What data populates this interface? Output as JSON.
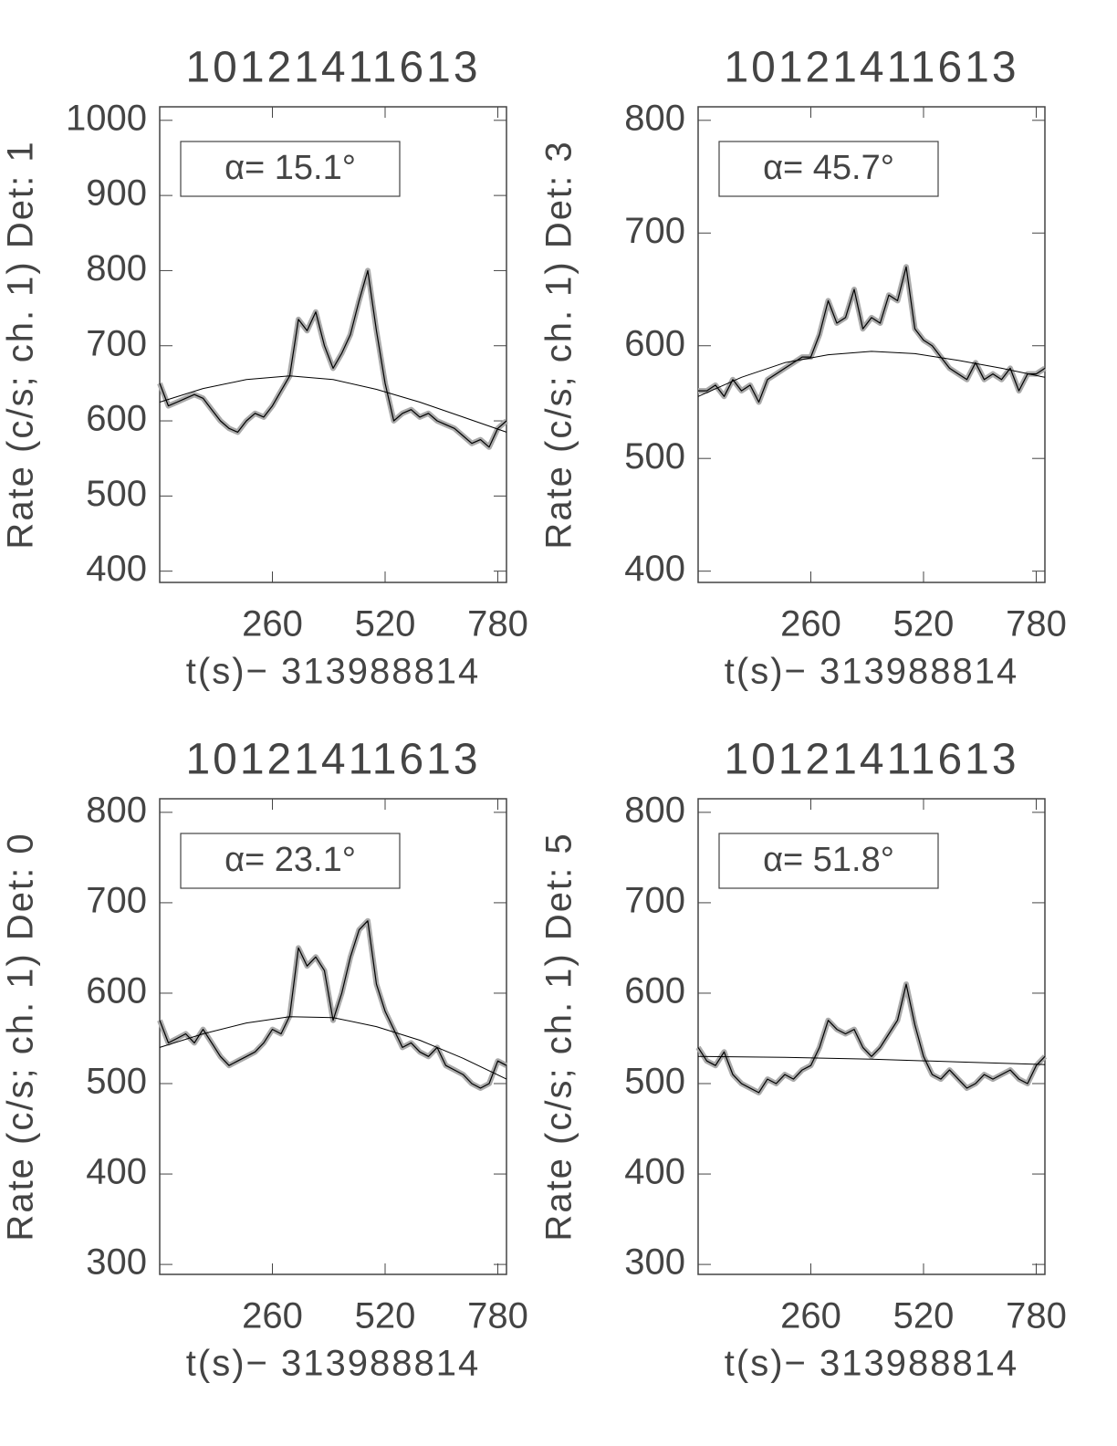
{
  "chart_data": [
    {
      "type": "line",
      "title": "10121411613",
      "xlabel": "t(s)− 313988814",
      "ylabel": "Rate (c/s; ch. 1) Det: 1",
      "annotation": "α= 15.1°",
      "xlim": [
        0,
        800
      ],
      "xticks": [
        260,
        520,
        780
      ],
      "ylim": [
        385,
        1018
      ],
      "yticks": [
        400,
        500,
        600,
        700,
        800,
        900,
        1000
      ],
      "series": [
        {
          "color": "#000000",
          "x": [
            0,
            20,
            40,
            60,
            80,
            100,
            120,
            140,
            160,
            180,
            200,
            220,
            240,
            260,
            280,
            300,
            320,
            340,
            360,
            380,
            400,
            420,
            440,
            460,
            480,
            500,
            520,
            540,
            560,
            580,
            600,
            620,
            640,
            660,
            680,
            700,
            720,
            740,
            760,
            780,
            800
          ],
          "values": [
            650,
            620,
            625,
            630,
            635,
            630,
            615,
            600,
            590,
            585,
            600,
            610,
            605,
            620,
            640,
            660,
            735,
            720,
            745,
            700,
            670,
            690,
            715,
            760,
            800,
            720,
            650,
            600,
            610,
            615,
            605,
            610,
            600,
            595,
            590,
            580,
            570,
            575,
            565,
            590,
            600
          ]
        },
        {
          "color": "#000000",
          "x": [
            0,
            100,
            200,
            300,
            400,
            500,
            600,
            700,
            800
          ],
          "values": [
            625,
            643,
            655,
            660,
            655,
            642,
            625,
            605,
            585
          ]
        }
      ]
    },
    {
      "type": "line",
      "title": "10121411613",
      "xlabel": "t(s)− 313988814",
      "ylabel": "Rate (c/s; ch. 1) Det: 3",
      "annotation": "α= 45.7°",
      "xlim": [
        0,
        800
      ],
      "xticks": [
        260,
        520,
        780
      ],
      "ylim": [
        390,
        812
      ],
      "yticks": [
        400,
        500,
        600,
        700,
        800
      ],
      "series": [
        {
          "color": "#000000",
          "x": [
            0,
            20,
            40,
            60,
            80,
            100,
            120,
            140,
            160,
            180,
            200,
            220,
            240,
            260,
            280,
            300,
            320,
            340,
            360,
            380,
            400,
            420,
            440,
            460,
            480,
            500,
            520,
            540,
            560,
            580,
            600,
            620,
            640,
            660,
            680,
            700,
            720,
            740,
            760,
            780,
            800
          ],
          "values": [
            560,
            560,
            565,
            555,
            570,
            560,
            565,
            550,
            570,
            575,
            580,
            585,
            590,
            590,
            610,
            640,
            620,
            625,
            650,
            615,
            625,
            620,
            645,
            640,
            670,
            615,
            605,
            600,
            590,
            580,
            575,
            570,
            585,
            570,
            575,
            570,
            580,
            560,
            575,
            575,
            580
          ]
        },
        {
          "color": "#000000",
          "x": [
            0,
            100,
            200,
            300,
            400,
            500,
            600,
            700,
            800
          ],
          "values": [
            555,
            572,
            585,
            592,
            595,
            593,
            587,
            580,
            572
          ]
        }
      ]
    },
    {
      "type": "line",
      "title": "10121411613",
      "xlabel": "t(s)− 313988814",
      "ylabel": "Rate (c/s; ch. 1) Det: 0",
      "annotation": "α= 23.1°",
      "xlim": [
        0,
        800
      ],
      "xticks": [
        260,
        520,
        780
      ],
      "ylim": [
        289,
        815
      ],
      "yticks": [
        300,
        400,
        500,
        600,
        700,
        800
      ],
      "series": [
        {
          "color": "#000000",
          "x": [
            0,
            20,
            40,
            60,
            80,
            100,
            120,
            140,
            160,
            180,
            200,
            220,
            240,
            260,
            280,
            300,
            320,
            340,
            360,
            380,
            400,
            420,
            440,
            460,
            480,
            500,
            520,
            540,
            560,
            580,
            600,
            620,
            640,
            660,
            680,
            700,
            720,
            740,
            760,
            780,
            800
          ],
          "values": [
            570,
            545,
            550,
            555,
            545,
            560,
            545,
            530,
            520,
            525,
            530,
            535,
            545,
            560,
            555,
            575,
            650,
            630,
            640,
            625,
            570,
            600,
            640,
            670,
            680,
            610,
            580,
            560,
            540,
            545,
            535,
            530,
            540,
            520,
            515,
            510,
            500,
            495,
            500,
            525,
            520
          ]
        },
        {
          "color": "#000000",
          "x": [
            0,
            100,
            200,
            300,
            400,
            500,
            600,
            700,
            800
          ],
          "values": [
            540,
            555,
            567,
            574,
            573,
            563,
            548,
            528,
            505
          ]
        }
      ]
    },
    {
      "type": "line",
      "title": "10121411613",
      "xlabel": "t(s)− 313988814",
      "ylabel": "Rate (c/s; ch. 1) Det: 5",
      "annotation": "α= 51.8°",
      "xlim": [
        0,
        800
      ],
      "xticks": [
        260,
        520,
        780
      ],
      "ylim": [
        289,
        815
      ],
      "yticks": [
        300,
        400,
        500,
        600,
        700,
        800
      ],
      "series": [
        {
          "color": "#000000",
          "x": [
            0,
            20,
            40,
            60,
            80,
            100,
            120,
            140,
            160,
            180,
            200,
            220,
            240,
            260,
            280,
            300,
            320,
            340,
            360,
            380,
            400,
            420,
            440,
            460,
            480,
            500,
            520,
            540,
            560,
            580,
            600,
            620,
            640,
            660,
            680,
            700,
            720,
            740,
            760,
            780,
            800
          ],
          "values": [
            540,
            525,
            520,
            535,
            510,
            500,
            495,
            490,
            505,
            500,
            510,
            505,
            515,
            520,
            540,
            570,
            560,
            555,
            560,
            540,
            530,
            540,
            555,
            570,
            610,
            565,
            530,
            510,
            505,
            515,
            505,
            495,
            500,
            510,
            505,
            510,
            515,
            505,
            500,
            520,
            530
          ]
        },
        {
          "color": "#000000",
          "x": [
            0,
            200,
            400,
            600,
            800
          ],
          "values": [
            530,
            529,
            527,
            524,
            521
          ]
        }
      ]
    }
  ]
}
